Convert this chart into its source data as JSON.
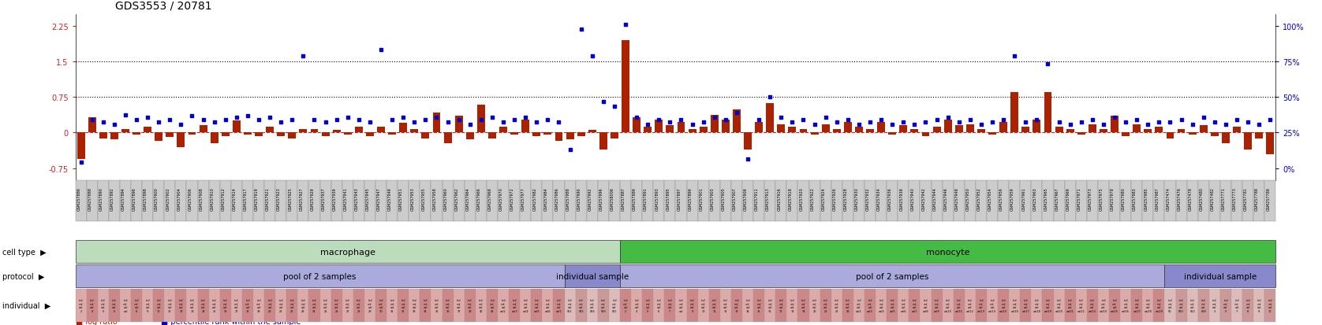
{
  "title": "GDS3553 / 20781",
  "ylim": [
    -1.0,
    2.5
  ],
  "yticks_left": [
    -0.75,
    0,
    0.75,
    1.5,
    2.25
  ],
  "bar_color": "#aa2200",
  "dot_color": "#0000cc",
  "bg_color": "#ffffff",
  "plot_bg": "#ffffff",
  "samples_macrophage_pool": [
    "GSM257886",
    "GSM257888",
    "GSM257890",
    "GSM257892",
    "GSM257894",
    "GSM257896",
    "GSM257898",
    "GSM257900",
    "GSM257902",
    "GSM257904",
    "GSM257906",
    "GSM257908",
    "GSM257910",
    "GSM257912",
    "GSM257914",
    "GSM257917",
    "GSM257919",
    "GSM257921",
    "GSM257923",
    "GSM257925",
    "GSM257927",
    "GSM257929",
    "GSM257937",
    "GSM257939",
    "GSM257941",
    "GSM257943",
    "GSM257945",
    "GSM257947",
    "GSM257949",
    "GSM257951",
    "GSM257953",
    "GSM257955",
    "GSM257958",
    "GSM257960",
    "GSM257962",
    "GSM257964",
    "GSM257966",
    "GSM257968",
    "GSM257970",
    "GSM257972",
    "GSM257977",
    "GSM257982",
    "GSM257984",
    "GSM257986"
  ],
  "samples_macrophage_ind": [
    "GSM257988",
    "GSM257990",
    "GSM257992",
    "GSM257996",
    "GSM258006"
  ],
  "samples_monocyte_pool": [
    "GSM257887",
    "GSM257889",
    "GSM257891",
    "GSM257893",
    "GSM257895",
    "GSM257897",
    "GSM257899",
    "GSM257901",
    "GSM257903",
    "GSM257905",
    "GSM257907",
    "GSM257909",
    "GSM257911",
    "GSM257913",
    "GSM257916",
    "GSM257918",
    "GSM257920",
    "GSM257922",
    "GSM257924",
    "GSM257926",
    "GSM257928",
    "GSM257930",
    "GSM257932",
    "GSM257934",
    "GSM257936",
    "GSM257938",
    "GSM257940",
    "GSM257942",
    "GSM257944",
    "GSM257946",
    "GSM257948",
    "GSM257950",
    "GSM257952",
    "GSM257954",
    "GSM257956",
    "GSM257959",
    "GSM257961",
    "GSM257963",
    "GSM257965",
    "GSM257967",
    "GSM257969",
    "GSM257971",
    "GSM257973",
    "GSM257975",
    "GSM257978",
    "GSM257980",
    "GSM257983",
    "GSM257985",
    "GSM257987"
  ],
  "samples_monocyte_ind": [
    "GSM257474",
    "GSM257476",
    "GSM257478",
    "GSM257480",
    "GSM257482",
    "GSM257771",
    "GSM257773",
    "GSM257781",
    "GSM257788",
    "GSM257789"
  ],
  "bar_values_mac_pool": [
    -0.55,
    0.32,
    -0.12,
    -0.15,
    0.08,
    -0.05,
    0.12,
    -0.18,
    -0.1,
    -0.3,
    -0.05,
    0.15,
    -0.22,
    -0.08,
    0.25,
    -0.05,
    -0.08,
    0.12,
    -0.08,
    -0.12,
    0.08,
    0.08,
    -0.08,
    0.05,
    -0.05,
    0.12,
    -0.08,
    0.12,
    -0.05,
    0.2,
    0.08,
    -0.12,
    0.42,
    -0.22,
    0.35,
    -0.15,
    0.58,
    -0.12,
    0.12,
    -0.05,
    0.28,
    -0.08,
    -0.05,
    -0.18
  ],
  "bar_values_mac_ind": [
    -0.15,
    -0.08,
    0.05,
    -0.35,
    -0.12
  ],
  "bar_values_mon_pool": [
    1.95,
    0.32,
    0.12,
    0.28,
    0.15,
    0.22,
    0.08,
    0.12,
    0.38,
    0.28,
    0.48,
    -0.35,
    0.22,
    0.62,
    0.18,
    0.12,
    0.08,
    -0.05,
    0.18,
    0.08,
    0.22,
    0.12,
    0.08,
    0.22,
    -0.05,
    0.15,
    0.08,
    -0.08,
    0.12,
    0.28,
    0.15,
    0.18,
    0.08,
    -0.05,
    0.22,
    0.85,
    0.12,
    0.28,
    0.85,
    0.12,
    0.08,
    -0.05,
    0.18,
    0.08,
    0.35,
    -0.08,
    0.18,
    0.08,
    0.12
  ],
  "bar_values_mon_ind": [
    -0.12,
    0.08,
    -0.05,
    0.15,
    -0.08,
    -0.22,
    0.12,
    -0.35,
    -0.12,
    -0.45
  ],
  "dot_values_mac_pool": [
    -0.62,
    0.28,
    0.22,
    0.18,
    0.38,
    0.28,
    0.32,
    0.22,
    0.28,
    0.18,
    0.35,
    0.28,
    0.22,
    0.28,
    0.32,
    0.35,
    0.28,
    0.32,
    0.22,
    0.28,
    1.62,
    0.28,
    0.22,
    0.28,
    0.32,
    0.28,
    0.22,
    1.75,
    0.28,
    0.32,
    0.22,
    0.28,
    0.32,
    0.22,
    0.28,
    0.18,
    0.28,
    0.32,
    0.22,
    0.28,
    0.32,
    0.22,
    0.28,
    0.22
  ],
  "dot_values_mac_ind": [
    -0.35,
    2.18,
    1.62,
    0.65,
    0.55
  ],
  "dot_values_mon_pool": [
    2.28,
    0.32,
    0.18,
    0.28,
    0.22,
    0.28,
    0.18,
    0.22,
    0.32,
    0.28,
    0.42,
    -0.55,
    0.28,
    0.75,
    0.32,
    0.22,
    0.28,
    0.18,
    0.32,
    0.22,
    0.28,
    0.18,
    0.22,
    0.28,
    0.18,
    0.22,
    0.18,
    0.22,
    0.28,
    0.32,
    0.22,
    0.28,
    0.18,
    0.22,
    0.28,
    1.62,
    0.22,
    0.28,
    1.45,
    0.22,
    0.18,
    0.22,
    0.28,
    0.18,
    0.32,
    0.22,
    0.28,
    0.18,
    0.22
  ],
  "dot_values_mon_ind": [
    0.22,
    0.28,
    0.18,
    0.32,
    0.22,
    0.18,
    0.28,
    0.22,
    0.18,
    0.28
  ],
  "cell_type_mac_color": "#bbddbb",
  "cell_type_mon_color": "#44bb44",
  "protocol_pool_color": "#aaaadd",
  "protocol_ind_color": "#8888cc",
  "individual_even_color": "#ddaaaa",
  "individual_odd_color": "#cc8888",
  "individual_ind_even_color": "#ddbbbb",
  "individual_ind_odd_color": "#cc9999",
  "xticklabel_bg": "#cccccc",
  "xticklabel_border": "#888888"
}
